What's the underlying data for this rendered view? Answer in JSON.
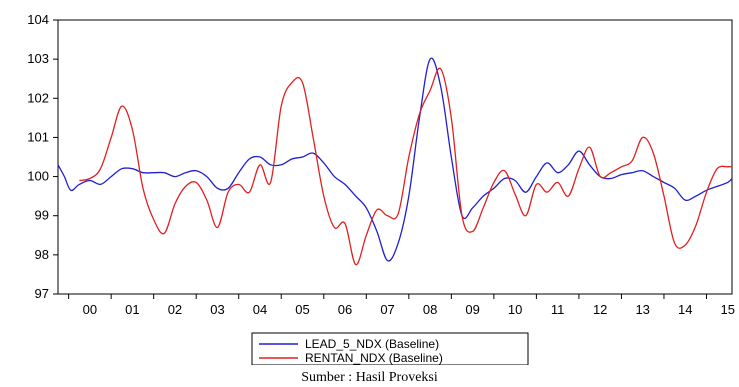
{
  "chart_data": {
    "type": "line",
    "categories": [
      "00",
      "01",
      "02",
      "03",
      "04",
      "05",
      "06",
      "07",
      "08",
      "09",
      "10",
      "11",
      "12",
      "13",
      "14",
      "15"
    ],
    "yticks": [
      97,
      98,
      99,
      100,
      101,
      102,
      103,
      104
    ],
    "ylim": [
      97,
      104
    ],
    "xlim": [
      -0.75,
      15.1
    ],
    "grid": false,
    "legend_position": "bottom-center",
    "series": [
      {
        "name": "LEAD_5_NDX (Baseline)",
        "color": "#2020d0",
        "x": [
          -0.75,
          -0.6,
          -0.45,
          -0.25,
          0,
          0.25,
          0.5,
          0.75,
          1,
          1.25,
          1.5,
          1.75,
          2,
          2.25,
          2.5,
          2.75,
          3,
          3.25,
          3.5,
          3.75,
          4,
          4.25,
          4.5,
          4.75,
          5,
          5.25,
          5.5,
          5.75,
          6,
          6.25,
          6.5,
          6.75,
          7,
          7.25,
          7.5,
          7.75,
          8,
          8.25,
          8.5,
          8.75,
          9,
          9.25,
          9.5,
          9.75,
          10,
          10.25,
          10.5,
          10.75,
          11,
          11.25,
          11.5,
          11.75,
          12,
          12.25,
          12.5,
          12.75,
          13,
          13.25,
          13.5,
          13.75,
          14,
          14.25,
          14.5,
          14.75,
          15,
          15.1
        ],
        "y": [
          100.3,
          100.0,
          99.65,
          99.8,
          99.9,
          99.8,
          100.0,
          100.2,
          100.2,
          100.1,
          100.1,
          100.1,
          100.0,
          100.1,
          100.15,
          100.0,
          99.7,
          99.7,
          100.1,
          100.45,
          100.5,
          100.3,
          100.3,
          100.45,
          100.5,
          100.6,
          100.35,
          100.0,
          99.8,
          99.5,
          99.2,
          98.6,
          97.85,
          98.3,
          99.5,
          101.5,
          103.0,
          102.3,
          100.5,
          99.0,
          99.2,
          99.5,
          99.7,
          99.95,
          99.9,
          99.6,
          100.0,
          100.35,
          100.1,
          100.3,
          100.65,
          100.3,
          100.0,
          99.95,
          100.05,
          100.1,
          100.15,
          100.0,
          99.85,
          99.7,
          99.4,
          99.5,
          99.65,
          99.75,
          99.85,
          99.95
        ]
      },
      {
        "name": "RENTAN_NDX (Baseline)",
        "color": "#e02020",
        "x": [
          -0.25,
          0,
          0.25,
          0.5,
          0.75,
          1,
          1.25,
          1.5,
          1.75,
          2,
          2.25,
          2.5,
          2.75,
          3,
          3.25,
          3.5,
          3.75,
          4,
          4.25,
          4.5,
          4.75,
          5,
          5.25,
          5.5,
          5.75,
          6,
          6.25,
          6.5,
          6.75,
          7,
          7.25,
          7.5,
          7.75,
          8,
          8.25,
          8.5,
          8.75,
          9,
          9.25,
          9.5,
          9.75,
          10,
          10.25,
          10.5,
          10.75,
          11,
          11.25,
          11.5,
          11.75,
          12,
          12.25,
          12.5,
          12.75,
          13,
          13.25,
          13.5,
          13.75,
          14,
          14.25,
          14.5,
          14.75,
          15,
          15.1
        ],
        "y": [
          99.9,
          99.95,
          100.2,
          101.0,
          101.8,
          101.2,
          99.7,
          98.9,
          98.55,
          99.3,
          99.75,
          99.85,
          99.4,
          98.7,
          99.6,
          99.8,
          99.6,
          100.3,
          99.85,
          101.8,
          102.4,
          102.4,
          101.0,
          99.5,
          98.7,
          98.8,
          97.75,
          98.5,
          99.15,
          99.0,
          99.05,
          100.5,
          101.6,
          102.2,
          102.75,
          101.5,
          99.0,
          98.6,
          99.2,
          99.85,
          100.15,
          99.55,
          99.0,
          99.8,
          99.6,
          99.85,
          99.5,
          100.2,
          100.75,
          100.0,
          100.1,
          100.25,
          100.4,
          101.0,
          100.6,
          99.5,
          98.3,
          98.25,
          98.75,
          99.6,
          100.2,
          100.25,
          100.25
        ]
      }
    ]
  },
  "caption": "Sumber : Hasil Proveksi"
}
